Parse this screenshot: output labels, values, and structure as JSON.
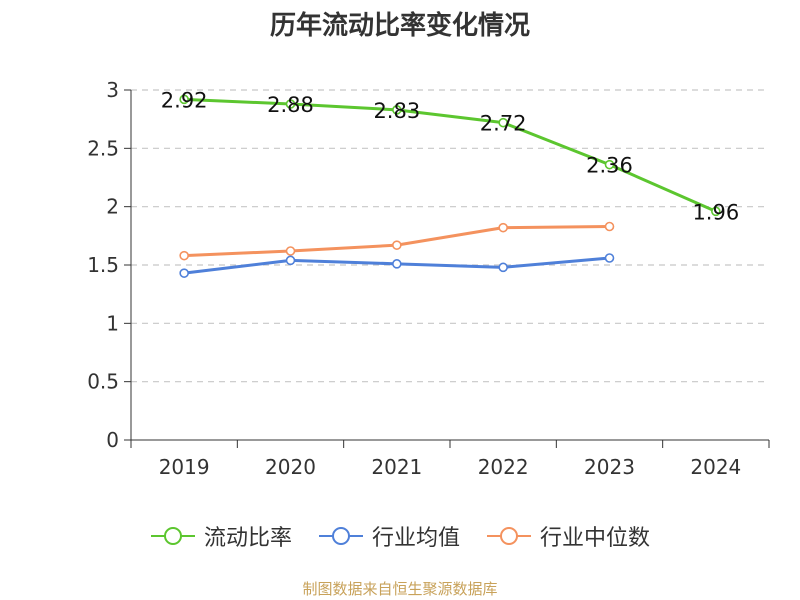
{
  "chart_data": {
    "type": "line",
    "title": "历年流动比率变化情况",
    "categories": [
      "2019",
      "2020",
      "2021",
      "2022",
      "2023",
      "2024"
    ],
    "ylim": [
      0,
      3
    ],
    "yticks": [
      "0",
      "0.5",
      "1",
      "1.5",
      "2",
      "2.5",
      "3"
    ],
    "grid": "horizontal-dashed",
    "legend_position": "bottom",
    "series": [
      {
        "name": "流动比率",
        "color": "#5cc62f",
        "values": [
          2.92,
          2.88,
          2.83,
          2.72,
          2.36,
          1.96
        ],
        "labels": [
          "2.92",
          "2.88",
          "2.83",
          "2.72",
          "2.36",
          "1.96"
        ]
      },
      {
        "name": "行业均值",
        "color": "#4f80d9",
        "values": [
          1.43,
          1.54,
          1.51,
          1.48,
          1.56,
          null
        ]
      },
      {
        "name": "行业中位数",
        "color": "#f4925e",
        "values": [
          1.58,
          1.62,
          1.67,
          1.82,
          1.83,
          null
        ]
      }
    ]
  },
  "footer": {
    "source": "制图数据来自恒生聚源数据库"
  }
}
